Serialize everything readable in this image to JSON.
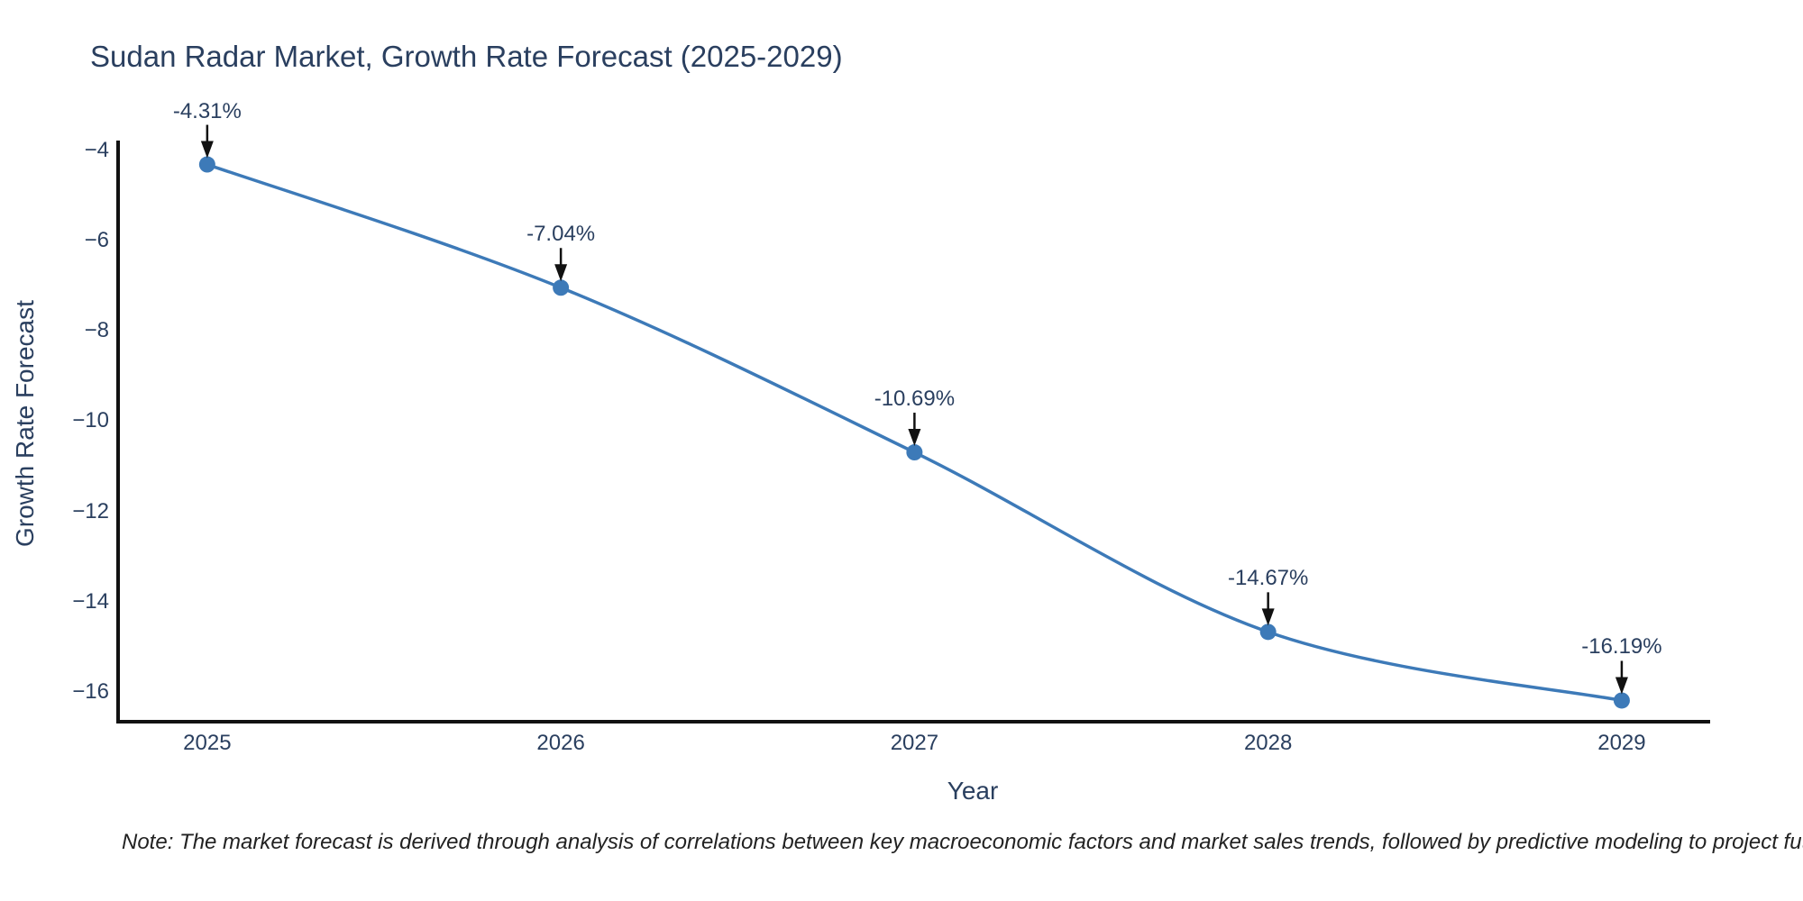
{
  "title": "Sudan Radar Market, Growth Rate Forecast (2025-2029)",
  "note": "Note: The market forecast is derived through analysis of correlations between key macroeconomic factors and market sales trends, followed by predictive modeling to project future sales",
  "colors": {
    "accent": "#3d7ab8",
    "marker": "#3d7ab8",
    "text": "#2a3f5f",
    "axis_line": "#111111",
    "arrow": "#111111",
    "note_text": "#222222",
    "background": "#ffffff"
  },
  "chart_data": {
    "type": "line",
    "title": "Sudan Radar Market, Growth Rate Forecast (2025-2029)",
    "xlabel": "Year",
    "ylabel": "Growth Rate Forecast",
    "x": [
      2025,
      2026,
      2027,
      2028,
      2029
    ],
    "y": [
      -4.31,
      -7.04,
      -10.69,
      -14.67,
      -16.19
    ],
    "point_labels": [
      "-4.31%",
      "-7.04%",
      "-10.69%",
      "-14.67%",
      "-16.19%"
    ],
    "x_tick_labels": [
      "2025",
      "2026",
      "2027",
      "2028",
      "2029"
    ],
    "y_ticks": [
      -4,
      -6,
      -8,
      -10,
      -12,
      -14,
      -16
    ],
    "y_tick_labels": [
      "−4",
      "−6",
      "−8",
      "−10",
      "−12",
      "−14",
      "−16"
    ],
    "xlim": [
      2024.748,
      2029.25
    ],
    "ylim": [
      -16.66,
      -3.78
    ],
    "grid": false,
    "legend": false,
    "line_shape": "spline",
    "line_width": 3.5,
    "marker_radius": 9
  }
}
